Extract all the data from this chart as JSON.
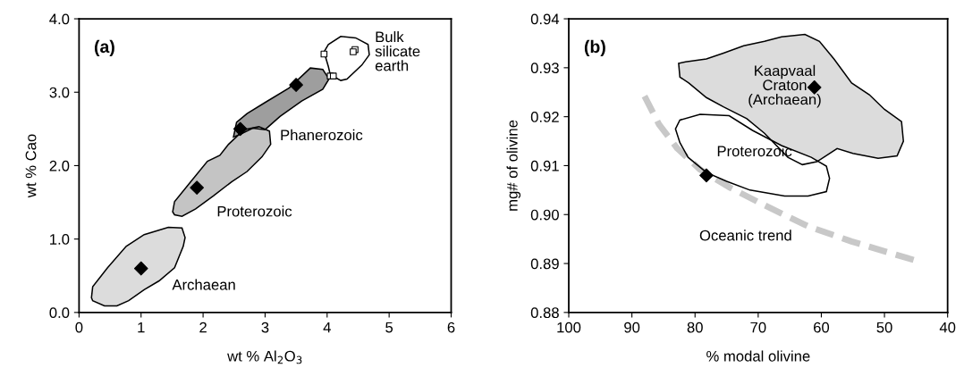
{
  "chart_data": [
    {
      "type": "scatter",
      "xlabel": "wt % Al$_{2}$O$_{3}$",
      "ylabel": "wt % Cao",
      "xlim": [
        0,
        6
      ],
      "ylim": [
        0,
        4
      ],
      "xticks": [
        0,
        1,
        2,
        3,
        4,
        5,
        6
      ],
      "yticks": [
        {
          "value": 0,
          "label": "0.0"
        },
        {
          "value": 1,
          "label": "1.0"
        },
        {
          "value": 2,
          "label": "2.0"
        },
        {
          "value": 3,
          "label": "3.0"
        },
        {
          "value": 4,
          "label": "4.0"
        }
      ],
      "grid": false,
      "legend": false,
      "annotations": [
        "(a)"
      ],
      "series": [
        {
          "type": "area",
          "name": "Archaean",
          "color": "#dcdcdc",
          "x": [
            0.2,
            0.22,
            0.46,
            0.76,
            1.05,
            1.44,
            1.66,
            1.71,
            1.68,
            1.54,
            1.29,
            1.05,
            0.8,
            0.61,
            0.41,
            0.22
          ],
          "values": [
            0.2,
            0.35,
            0.61,
            0.9,
            1.06,
            1.16,
            1.15,
            1.02,
            0.9,
            0.61,
            0.43,
            0.31,
            0.16,
            0.09,
            0.09,
            0.16
          ]
        },
        {
          "type": "area",
          "name": "Phanerozoic",
          "color": "#9e9e9e",
          "x": [
            2.49,
            2.54,
            2.71,
            3.0,
            3.39,
            3.73,
            3.93,
            4.03,
            3.93,
            3.59,
            3.24,
            3.0,
            2.8,
            2.61
          ],
          "values": [
            2.39,
            2.59,
            2.71,
            2.86,
            3.06,
            3.33,
            3.31,
            3.18,
            3.04,
            2.88,
            2.67,
            2.49,
            2.51,
            2.43
          ]
        },
        {
          "type": "area",
          "name": "Proterozoic",
          "color": "#c4c4c4",
          "x": [
            1.51,
            1.54,
            1.78,
            2.07,
            2.27,
            2.41,
            2.66,
            2.9,
            3.07,
            3.09,
            2.95,
            2.71,
            2.46,
            2.17,
            1.88,
            1.66,
            1.54
          ],
          "values": [
            1.37,
            1.51,
            1.76,
            2.06,
            2.14,
            2.29,
            2.49,
            2.53,
            2.47,
            2.29,
            2.12,
            1.92,
            1.78,
            1.59,
            1.41,
            1.31,
            1.33
          ]
        },
        {
          "type": "area",
          "name": "Bulk\nsilicate\nearth",
          "color": "#ffffff",
          "x": [
            3.95,
            4.02,
            4.22,
            4.46,
            4.66,
            4.68,
            4.56,
            4.32,
            4.22,
            4.05,
            4.02
          ],
          "values": [
            3.55,
            3.65,
            3.76,
            3.74,
            3.65,
            3.51,
            3.37,
            3.18,
            3.16,
            3.24,
            3.35
          ]
        },
        {
          "marker": "diamond",
          "color": "#000000",
          "x": [
            1.0,
            1.9,
            2.6,
            3.5
          ],
          "values": [
            0.6,
            1.7,
            2.5,
            3.1
          ]
        },
        {
          "marker": "square",
          "color": "#ffffff",
          "x": [
            3.95,
            4.45,
            4.42,
            4.05,
            4.1
          ],
          "values": [
            3.52,
            3.58,
            3.55,
            3.22,
            3.22
          ]
        }
      ]
    },
    {
      "type": "scatter",
      "xlabel": "% modal olivine",
      "ylabel": "mg# of olivine",
      "xlim": [
        100,
        40
      ],
      "ylim": [
        0.88,
        0.94
      ],
      "xticks": [
        100,
        90,
        80,
        70,
        60,
        50,
        40
      ],
      "yticks": [
        {
          "value": 0.88,
          "label": "0.88"
        },
        {
          "value": 0.89,
          "label": "0.89"
        },
        {
          "value": 0.9,
          "label": "0.90"
        },
        {
          "value": 0.91,
          "label": "0.91"
        },
        {
          "value": 0.92,
          "label": "0.92"
        },
        {
          "value": 0.93,
          "label": "0.93"
        },
        {
          "value": 0.94,
          "label": "0.94"
        }
      ],
      "grid": false,
      "legend": false,
      "annotations": [
        "(b)"
      ],
      "series": [
        {
          "type": "area",
          "name": "Kaapvaal\nCraton\n(Archaean)",
          "color": "#dcdcdc",
          "x": [
            82.6,
            81.5,
            78.2,
            75.5,
            72.3,
            69.0,
            66.3,
            62.6,
            60.3,
            58.0,
            55.2,
            52.4,
            50.0,
            47.3,
            47.0,
            48.0,
            51.0,
            55.0,
            57.5,
            60.7,
            63.0,
            65.3,
            69.0,
            71.8,
            75.5,
            78.2,
            81.0,
            82.4
          ],
          "values": [
            0.9309,
            0.9312,
            0.9318,
            0.933,
            0.9345,
            0.9354,
            0.9363,
            0.9368,
            0.9354,
            0.9318,
            0.9269,
            0.9245,
            0.9215,
            0.919,
            0.915,
            0.912,
            0.9115,
            0.9125,
            0.9135,
            0.9108,
            0.9102,
            0.9117,
            0.9166,
            0.9196,
            0.922,
            0.9239,
            0.9269,
            0.9281
          ]
        },
        {
          "type": "area",
          "name": "Proterozoic",
          "color": "#ffffff",
          "x": [
            83.1,
            82.4,
            79.2,
            74.6,
            70.9,
            66.3,
            61.6,
            59.2,
            58.7,
            59.2,
            62.1,
            65.8,
            71.3,
            75.0,
            78.2,
            81.1,
            82.4
          ],
          "values": [
            0.9175,
            0.9193,
            0.9205,
            0.9202,
            0.9172,
            0.9141,
            0.9117,
            0.9099,
            0.9074,
            0.9047,
            0.9038,
            0.9038,
            0.905,
            0.9068,
            0.9086,
            0.9117,
            0.9147
          ]
        },
        {
          "type": "line",
          "name": "Oceanic trend",
          "line_style": "dashed",
          "color": "#c8c8c8",
          "x": [
            88.0,
            85.7,
            82.8,
            79.2,
            74.6,
            69.0,
            62.1,
            55.2,
            50.0,
            45.0
          ],
          "values": [
            0.9242,
            0.9184,
            0.9135,
            0.9092,
            0.9056,
            0.9019,
            0.8976,
            0.8945,
            0.8925,
            0.8906
          ]
        },
        {
          "marker": "diamond",
          "color": "#000000",
          "x": [
            61.1,
            78.2
          ],
          "values": [
            0.926,
            0.908
          ]
        }
      ]
    }
  ]
}
